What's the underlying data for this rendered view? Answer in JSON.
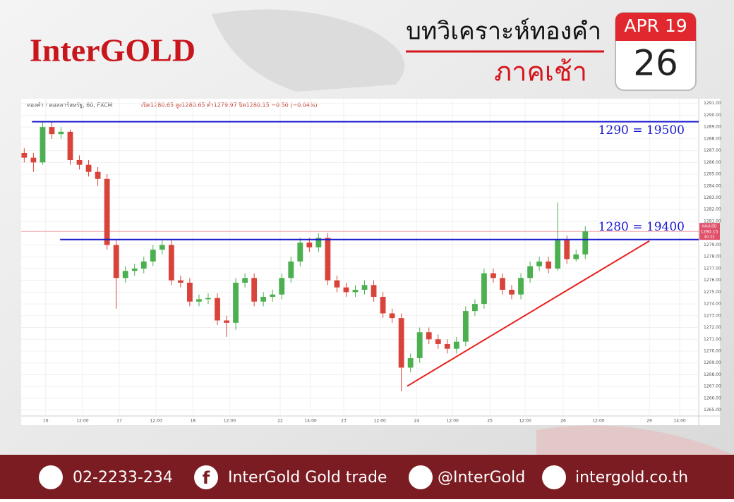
{
  "header": {
    "logo": "InterGOLD",
    "title": "บทวิเคราะห์ทองคำ",
    "subtitle": "ภาคเช้า",
    "calendar_month": "APR 19",
    "calendar_day": "26"
  },
  "chart_data": {
    "type": "candlestick",
    "symbol": "ทองคำ / ดอลลาร์สหรัฐ, 60, FXCM",
    "ohlc_legend": "เปิด1280.65 สูง1280.65 ต่ำ1279.97 ปิด1280.15 −0.50 (−0.04%)",
    "up_color": "#4caf50",
    "down_color": "#d9443a",
    "grid": true,
    "x": [
      1,
      4,
      7,
      10,
      13,
      16,
      19,
      22,
      25,
      28,
      31,
      34,
      37,
      40,
      43,
      46,
      49,
      52,
      55,
      58,
      61,
      64,
      67,
      70,
      73,
      76,
      79,
      82,
      85,
      88,
      91,
      94,
      97,
      100,
      103,
      106,
      109,
      112,
      115,
      118,
      121,
      124,
      127,
      130,
      133,
      136,
      139,
      142,
      145,
      148,
      151,
      154,
      157,
      160,
      163,
      166,
      169,
      172,
      175,
      178,
      181,
      184
    ],
    "open": [
      1286.8,
      1286.4,
      1286.0,
      1289.0,
      1288.4,
      1288.6,
      1286.2,
      1285.8,
      1285.2,
      1284.6,
      1279.0,
      1276.2,
      1276.8,
      1277.0,
      1277.6,
      1278.6,
      1279.0,
      1276.0,
      1275.8,
      1274.2,
      1274.4,
      1274.5,
      1272.6,
      1272.4,
      1275.8,
      1276.2,
      1274.2,
      1274.6,
      1274.8,
      1276.2,
      1277.6,
      1279.2,
      1278.8,
      1279.6,
      1276.0,
      1275.4,
      1275.0,
      1275.2,
      1275.6,
      1274.6,
      1273.2,
      1272.8,
      1268.6,
      1269.4,
      1271.6,
      1271.0,
      1270.6,
      1270.2,
      1270.8,
      1273.4,
      1274.0,
      1276.6,
      1276.2,
      1275.2,
      1274.8,
      1276.2,
      1277.2,
      1277.6,
      1277.0,
      1279.4,
      1277.8,
      1278.2
    ],
    "high": [
      1287.2,
      1286.8,
      1289.4,
      1289.4,
      1289.0,
      1288.8,
      1286.6,
      1286.2,
      1285.6,
      1285.0,
      1279.4,
      1277.2,
      1277.4,
      1278.0,
      1279.0,
      1279.4,
      1279.4,
      1276.4,
      1276.2,
      1274.8,
      1274.9,
      1274.9,
      1273.0,
      1276.2,
      1276.6,
      1276.6,
      1275.0,
      1275.2,
      1276.6,
      1278.0,
      1279.6,
      1279.6,
      1280.0,
      1280.0,
      1276.4,
      1275.8,
      1275.6,
      1276.0,
      1276.0,
      1275.0,
      1273.6,
      1273.2,
      1269.8,
      1272.0,
      1272.0,
      1271.4,
      1271.0,
      1271.2,
      1273.8,
      1274.4,
      1277.0,
      1277.0,
      1276.6,
      1275.6,
      1276.6,
      1277.6,
      1278.0,
      1278.0,
      1282.6,
      1279.8,
      1278.6,
      1280.6
    ],
    "low": [
      1286.0,
      1285.2,
      1285.8,
      1288.0,
      1288.0,
      1285.8,
      1285.4,
      1284.8,
      1284.0,
      1278.6,
      1273.6,
      1275.8,
      1276.4,
      1276.6,
      1277.2,
      1278.2,
      1275.6,
      1275.4,
      1273.8,
      1273.8,
      1274.0,
      1272.2,
      1271.2,
      1271.8,
      1275.4,
      1273.8,
      1273.8,
      1274.2,
      1274.4,
      1275.8,
      1277.2,
      1278.4,
      1278.4,
      1275.6,
      1275.0,
      1274.6,
      1274.6,
      1274.8,
      1274.2,
      1272.8,
      1272.4,
      1266.6,
      1268.2,
      1269.0,
      1270.6,
      1270.2,
      1269.8,
      1269.8,
      1270.4,
      1273.0,
      1273.6,
      1275.8,
      1274.8,
      1274.4,
      1274.4,
      1275.8,
      1276.8,
      1276.6,
      1276.8,
      1277.4,
      1277.6,
      1277.8
    ],
    "close": [
      1286.4,
      1286.0,
      1289.0,
      1288.4,
      1288.6,
      1286.2,
      1285.8,
      1285.2,
      1284.6,
      1279.0,
      1276.2,
      1276.8,
      1277.0,
      1277.6,
      1278.6,
      1279.0,
      1276.0,
      1275.8,
      1274.2,
      1274.4,
      1274.5,
      1272.6,
      1272.4,
      1275.8,
      1276.2,
      1274.2,
      1274.6,
      1274.8,
      1276.2,
      1277.6,
      1279.2,
      1278.8,
      1279.6,
      1276.0,
      1275.4,
      1275.0,
      1275.2,
      1275.6,
      1274.6,
      1273.2,
      1272.8,
      1268.6,
      1269.4,
      1271.6,
      1271.0,
      1270.6,
      1270.2,
      1270.8,
      1273.4,
      1274.0,
      1276.6,
      1276.2,
      1275.2,
      1274.8,
      1276.2,
      1277.2,
      1277.6,
      1277.0,
      1279.4,
      1277.8,
      1278.2,
      1280.15
    ],
    "xlim": [
      0,
      221
    ],
    "xticks": [
      {
        "value": 8,
        "label": "16"
      },
      {
        "value": 20,
        "label": "12:00"
      },
      {
        "value": 32,
        "label": "17"
      },
      {
        "value": 44,
        "label": "12:00"
      },
      {
        "value": 56,
        "label": "18"
      },
      {
        "value": 68,
        "label": "12:00"
      },
      {
        "value": 84.5,
        "label": "22"
      },
      {
        "value": 94.4,
        "label": "14:00"
      },
      {
        "value": 105.2,
        "label": "23"
      },
      {
        "value": 117,
        "label": "12:00"
      },
      {
        "value": 129,
        "label": "24"
      },
      {
        "value": 140.7,
        "label": "12:00"
      },
      {
        "value": 152.9,
        "label": "25"
      },
      {
        "value": 164.4,
        "label": "12:00"
      },
      {
        "value": 176.8,
        "label": "26"
      },
      {
        "value": 188.3,
        "label": "12:00"
      },
      {
        "value": 204.9,
        "label": "29"
      },
      {
        "value": 214.8,
        "label": "14:00"
      }
    ],
    "ylim": [
      1264.5,
      1291.4
    ],
    "yticks": [
      {
        "value": 1265,
        "label": "1265.00"
      },
      {
        "value": 1266,
        "label": "1266.00"
      },
      {
        "value": 1267,
        "label": "1267.00"
      },
      {
        "value": 1268,
        "label": "1268.00"
      },
      {
        "value": 1269,
        "label": "1269.00"
      },
      {
        "value": 1270,
        "label": "1270.00"
      },
      {
        "value": 1271,
        "label": "1271.00"
      },
      {
        "value": 1272,
        "label": "1272.00"
      },
      {
        "value": 1273,
        "label": "1273.00"
      },
      {
        "value": 1274,
        "label": "1274.00"
      },
      {
        "value": 1275,
        "label": "1275.00"
      },
      {
        "value": 1276,
        "label": "1276.00"
      },
      {
        "value": 1277,
        "label": "1277.00"
      },
      {
        "value": 1278,
        "label": "1278.00"
      },
      {
        "value": 1279,
        "label": "1279.00"
      },
      {
        "value": 1281,
        "label": "1281.00"
      },
      {
        "value": 1282,
        "label": "1282.00"
      },
      {
        "value": 1283,
        "label": "1283.00"
      },
      {
        "value": 1284,
        "label": "1284.00"
      },
      {
        "value": 1285,
        "label": "1285.00"
      },
      {
        "value": 1286,
        "label": "1286.00"
      },
      {
        "value": 1287,
        "label": "1287.00"
      },
      {
        "value": 1288,
        "label": "1288.00"
      },
      {
        "value": 1289,
        "label": "1289.00"
      },
      {
        "value": 1290,
        "label": "1290.00"
      },
      {
        "value": 1291,
        "label": "1291.00"
      }
    ],
    "hlines": [
      {
        "y": 1289.45,
        "x_start": 3.5,
        "label": "1290 = 19500",
        "color": "#1a1ad0"
      },
      {
        "y": 1279.46,
        "x_start": 12.7,
        "label": "1280 = 19400",
        "color": "#1a1ad0"
      }
    ],
    "trendline": {
      "x": [
        125.9,
        204.9
      ],
      "y": [
        1267.03,
        1279.34
      ],
      "color": "#e8201b"
    },
    "last_price": {
      "value": 1280.15,
      "symbol": "XAUUSD",
      "countdown": "40:33",
      "color": "#f0a0a8"
    }
  },
  "footer": {
    "phone": "02-2233-234",
    "facebook": "InterGold Gold trade",
    "line": "@InterGold",
    "website": "intergold.co.th"
  }
}
